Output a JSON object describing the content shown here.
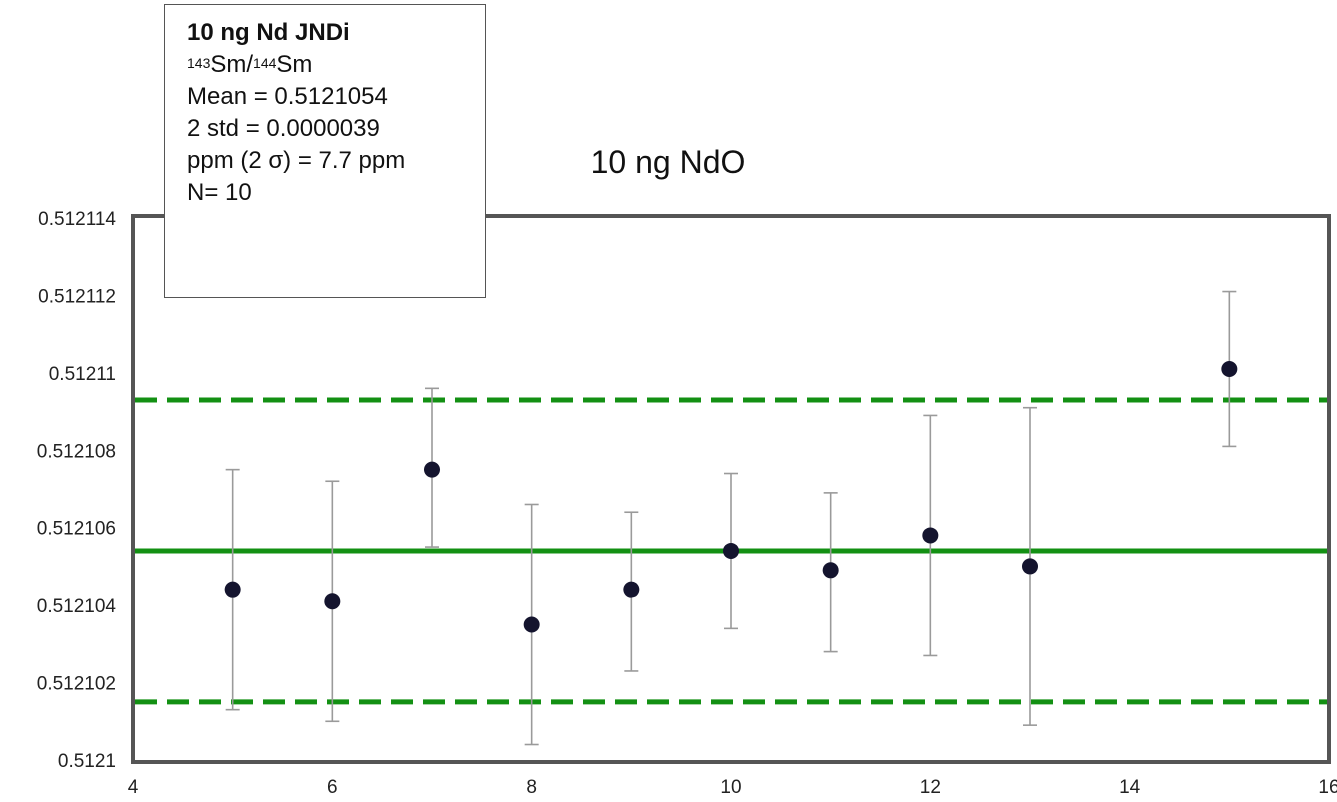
{
  "chart_data": {
    "type": "scatter",
    "title": "10 ng NdO",
    "xlim": [
      4,
      16
    ],
    "ylim": [
      0.5121,
      0.512114
    ],
    "x_ticks": [
      "4",
      "6",
      "8",
      "10",
      "12",
      "14",
      "16"
    ],
    "y_ticks": [
      "0.5121",
      "0.512102",
      "0.512104",
      "0.512106",
      "0.512108",
      "0.51211",
      "0.512112",
      "0.512114"
    ],
    "grid": false,
    "series": [
      {
        "x": [
          5,
          6,
          7,
          8,
          9,
          10,
          11,
          12,
          13,
          15
        ],
        "y": [
          0.5121044,
          0.5121041,
          0.5121075,
          0.5121035,
          0.5121044,
          0.5121054,
          0.5121049,
          0.5121058,
          0.512105,
          0.5121101
        ],
        "err_low": [
          0.5121013,
          0.512101,
          0.5121055,
          0.5121004,
          0.5121023,
          0.5121034,
          0.5121028,
          0.5121027,
          0.5121009,
          0.5121081
        ],
        "err_high": [
          0.5121075,
          0.5121072,
          0.5121096,
          0.5121066,
          0.5121064,
          0.5121074,
          0.5121069,
          0.5121089,
          0.5121091,
          0.5121121
        ],
        "color": "#14142e",
        "error_color": "#9a9a9a"
      }
    ],
    "reference_lines": [
      {
        "y": 0.5121054,
        "style": "solid",
        "color": "#139013"
      },
      {
        "y": 0.5121093,
        "style": "dashed",
        "color": "#139013"
      },
      {
        "y": 0.5121015,
        "style": "dashed",
        "color": "#139013"
      }
    ],
    "stats_box": {
      "heading": "10 ng Nd JNDi",
      "ratio_sup1": "143",
      "ratio_part1": "Sm/",
      "ratio_sup2": "144",
      "ratio_part2": "Sm",
      "mean": "Mean = 0.5121054",
      "std": "2 std = 0.0000039",
      "ppm": "ppm (2 σ) = 7.7 ppm",
      "n": "N= 10"
    }
  }
}
